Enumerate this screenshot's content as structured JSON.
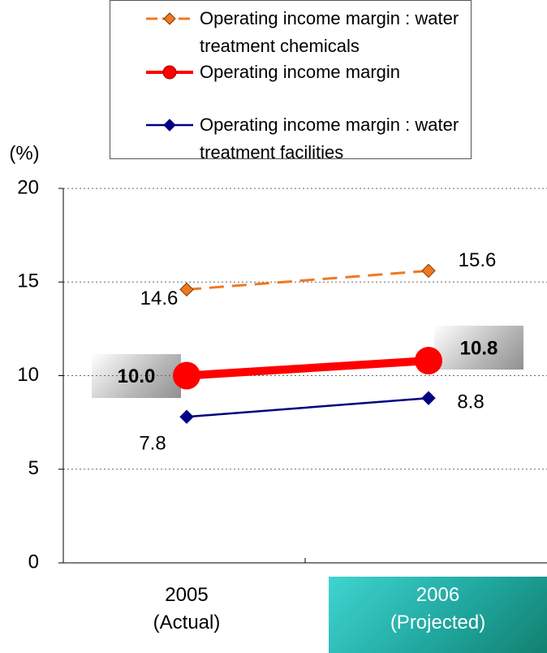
{
  "chart_data": {
    "type": "line",
    "y_axis_label": "(%)",
    "categories": [
      "2005 (Actual)",
      "2006 (Projected)"
    ],
    "series": [
      {
        "name": "Operating income margin : water treatment chemicals",
        "color": "#f07820",
        "dashed": true,
        "marker": "diamond",
        "values": [
          14.6,
          15.6
        ]
      },
      {
        "name": "Operating income margin",
        "color": "#ff0000",
        "dashed": false,
        "marker": "circle",
        "values": [
          10,
          10.8
        ],
        "value_labels": [
          "10.0",
          "10.8"
        ]
      },
      {
        "name": "Operating income margin : water treatment facilities",
        "color": "#000080",
        "dashed": false,
        "marker": "diamond",
        "values": [
          7.8,
          8.8
        ]
      }
    ],
    "ylim": [
      0,
      20
    ],
    "yticks": [
      0,
      5,
      10,
      15,
      20
    ],
    "grid": true
  }
}
